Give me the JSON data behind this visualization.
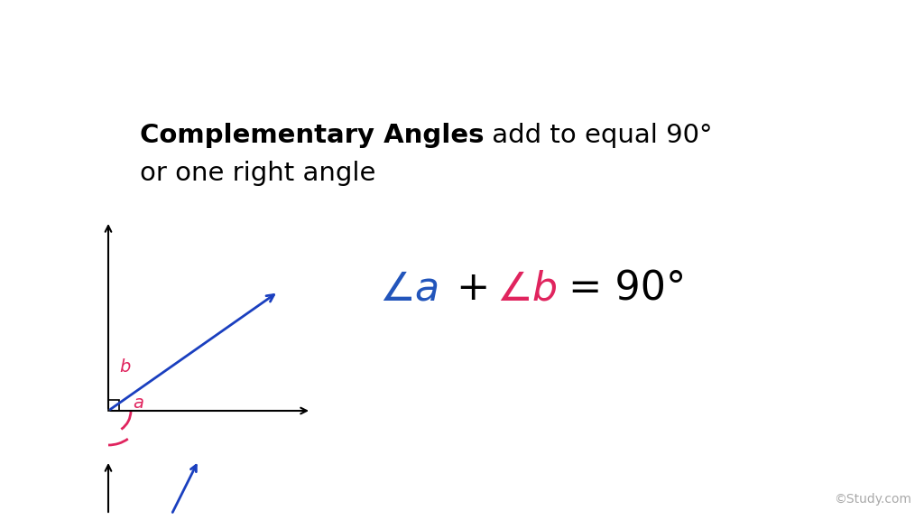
{
  "background_color": "#ffffff",
  "title_bold": "Complementary Angles",
  "title_normal": " add to equal 90°",
  "subtitle": "or one right angle",
  "title_fontsize": 21,
  "subtitle_fontsize": 21,
  "eq_angle_a_color": "#2255bb",
  "eq_angle_b_color": "#e0245e",
  "angle_arc_color": "#e0245e",
  "arrow_color": "#1a3fbf",
  "black": "#000000",
  "watermark": "©Study.com",
  "watermark_fontsize": 10,
  "watermark_color": "#aaaaaa"
}
